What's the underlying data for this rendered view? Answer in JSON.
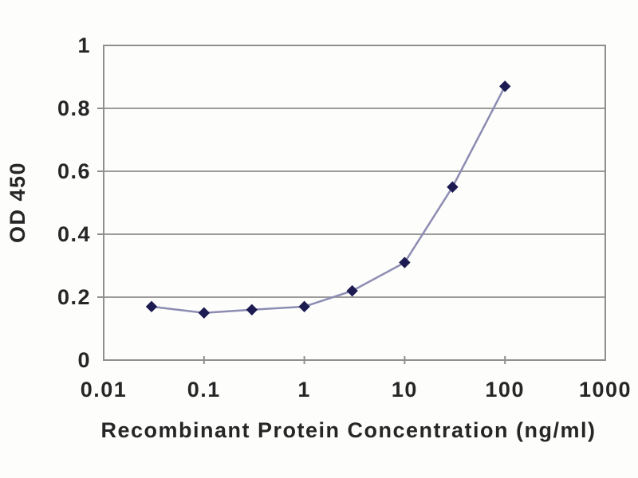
{
  "chart_data": {
    "type": "line",
    "title": "",
    "xlabel": "Recombinant Protein Concentration (ng/ml)",
    "ylabel": "OD 450",
    "x_scale": "log",
    "xlim": [
      0.01,
      1000
    ],
    "ylim": [
      0,
      1
    ],
    "x_ticks": [
      "0.01",
      "0.1",
      "1",
      "10",
      "100",
      "1000"
    ],
    "x_tick_values": [
      0.01,
      0.1,
      1,
      10,
      100,
      1000
    ],
    "y_ticks": [
      "0",
      "0.2",
      "0.4",
      "0.6",
      "0.8",
      "1"
    ],
    "y_tick_values": [
      0,
      0.2,
      0.4,
      0.6,
      0.8,
      1
    ],
    "grid": "horizontal",
    "legend": "none",
    "marker_shape": "diamond",
    "series": [
      {
        "name": "OD 450",
        "x": [
          0.03,
          0.1,
          0.3,
          1,
          3,
          10,
          30,
          100
        ],
        "y": [
          0.17,
          0.15,
          0.16,
          0.17,
          0.22,
          0.31,
          0.55,
          0.87
        ]
      }
    ],
    "colors": {
      "line": "#8d8cb2",
      "marker": "#1c1c52",
      "grid": "#9b9b9b",
      "border": "#8f8f8f",
      "text": "#262626",
      "background": "#fdfdfc"
    }
  }
}
